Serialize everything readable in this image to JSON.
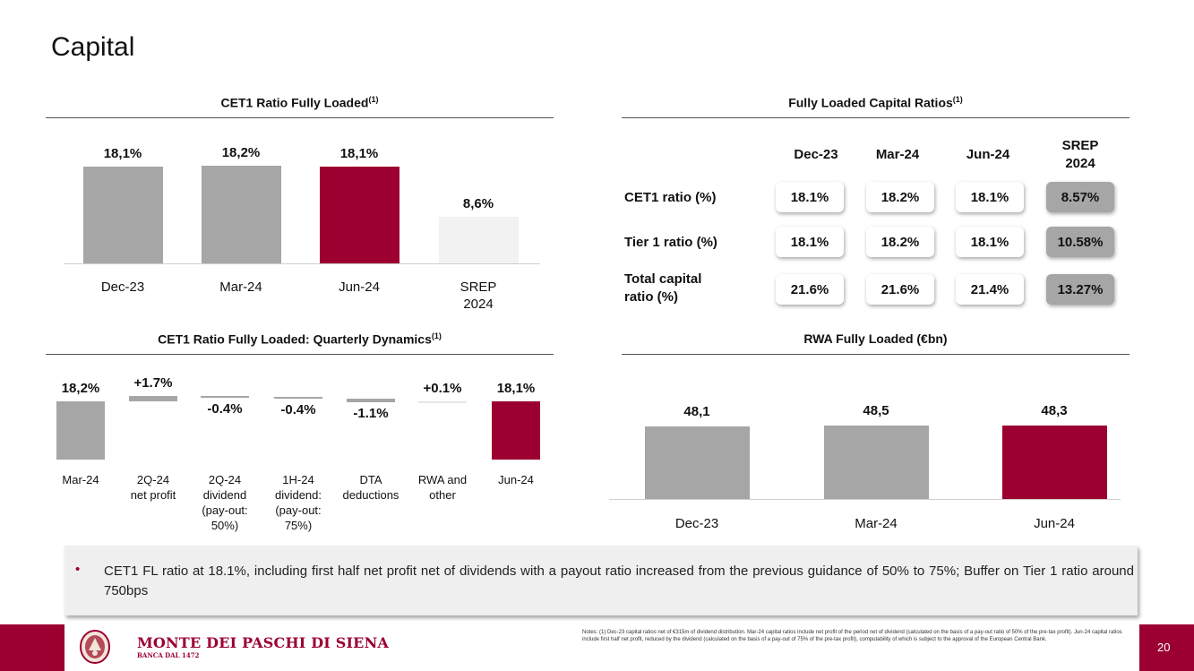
{
  "page": {
    "title": "Capital",
    "page_number": "20"
  },
  "colors": {
    "grey": "#a6a6a6",
    "brand": "#9b0031",
    "light": "#f2f2f2"
  },
  "cet1_chart": {
    "title": "CET1 Ratio Fully Loaded",
    "sup": "(1)",
    "bars": [
      {
        "category": "Dec-23",
        "label": "18,1%",
        "value": 18.1
      },
      {
        "category": "Mar-24",
        "label": "18,2%",
        "value": 18.2
      },
      {
        "category": "Jun-24",
        "label": "18,1%",
        "value": 18.1
      },
      {
        "category": "SREP 2024",
        "label": "8,6%",
        "value": 8.6
      }
    ]
  },
  "ratios_table": {
    "title": "Fully Loaded Capital Ratios",
    "sup": "(1)",
    "columns": [
      "Dec-23",
      "Mar-24",
      "Jun-24",
      "SREP 2024"
    ],
    "rows": [
      {
        "label": "CET1 ratio (%)",
        "values": [
          "18.1%",
          "18.2%",
          "18.1%",
          "8.57%"
        ]
      },
      {
        "label": "Tier 1 ratio (%)",
        "values": [
          "18.1%",
          "18.2%",
          "18.1%",
          "10.58%"
        ]
      },
      {
        "label": "Total capital ratio (%)",
        "values": [
          "21.6%",
          "21.6%",
          "21.4%",
          "13.27%"
        ]
      }
    ]
  },
  "dynamics_chart": {
    "title": "CET1 Ratio Fully Loaded: Quarterly Dynamics",
    "sup": "(1)",
    "steps": [
      {
        "category": "Mar-24",
        "label": "18,2%",
        "value": 18.2,
        "kind": "total"
      },
      {
        "category": "2Q-24 net profit",
        "label": "+1.7%",
        "value": 1.7,
        "kind": "delta"
      },
      {
        "category": "2Q-24 dividend (pay-out: 50%)",
        "label": "-0.4%",
        "value": -0.4,
        "kind": "delta"
      },
      {
        "category": "1H-24 dividend: (pay-out: 75%)",
        "label": "-0.4%",
        "value": -0.4,
        "kind": "delta"
      },
      {
        "category": "DTA deductions",
        "label": "-1.1%",
        "value": -1.1,
        "kind": "delta"
      },
      {
        "category": "RWA and other",
        "label": "+0.1%",
        "value": 0.1,
        "kind": "delta"
      },
      {
        "category": "Jun-24",
        "label": "18,1%",
        "value": 18.1,
        "kind": "total"
      }
    ]
  },
  "rwa_chart": {
    "title": "RWA Fully Loaded (€bn)",
    "bars": [
      {
        "category": "Dec-23",
        "label": "48,1",
        "value": 48.1
      },
      {
        "category": "Mar-24",
        "label": "48,5",
        "value": 48.5
      },
      {
        "category": "Jun-24",
        "label": "48,3",
        "value": 48.3
      }
    ]
  },
  "chart_data": [
    {
      "type": "bar",
      "title": "CET1 Ratio Fully Loaded(1)",
      "categories": [
        "Dec-23",
        "Mar-24",
        "Jun-24",
        "SREP 2024"
      ],
      "values": [
        18.1,
        18.2,
        18.1,
        8.6
      ],
      "ylabel": "%"
    },
    {
      "type": "bar",
      "title": "CET1 Ratio Fully Loaded: Quarterly Dynamics(1)",
      "categories": [
        "Mar-24",
        "2Q-24 net profit",
        "2Q-24 dividend (pay-out: 50%)",
        "1H-24 dividend: (pay-out: 75%)",
        "DTA deductions",
        "RWA and other",
        "Jun-24"
      ],
      "values": [
        18.2,
        1.7,
        -0.4,
        -0.4,
        -1.1,
        0.1,
        18.1
      ],
      "ylabel": "%"
    },
    {
      "type": "bar",
      "title": "RWA Fully Loaded (€bn)",
      "categories": [
        "Dec-23",
        "Mar-24",
        "Jun-24"
      ],
      "values": [
        48.1,
        48.5,
        48.3
      ],
      "ylabel": "€bn"
    }
  ],
  "note": {
    "bullet": "•",
    "text": "CET1 FL ratio at 18.1%, including first half net profit net of dividends with a payout ratio increased from the previous guidance of 50% to 75%; Buffer on Tier 1 ratio around 750bps"
  },
  "footer": {
    "brand": "MONTE DEI PASCHI DI SIENA",
    "brand_sub": "BANCA DAL 1472",
    "footnote": "Notes: (1) Dec-23 capital ratios net of €315m of dividend distribution. Mar-24 capital ratios include net profit of the period net of dividend (calculated on the basis of a pay-out ratio of 50% of the pre-tax profit). Jun-24 capital ratios include first half net profit, reduced by the dividend (calculated on the basis of a pay-out of 75% of the pre-tax profit), computability of which is subject to the approval of the European Central Bank."
  }
}
